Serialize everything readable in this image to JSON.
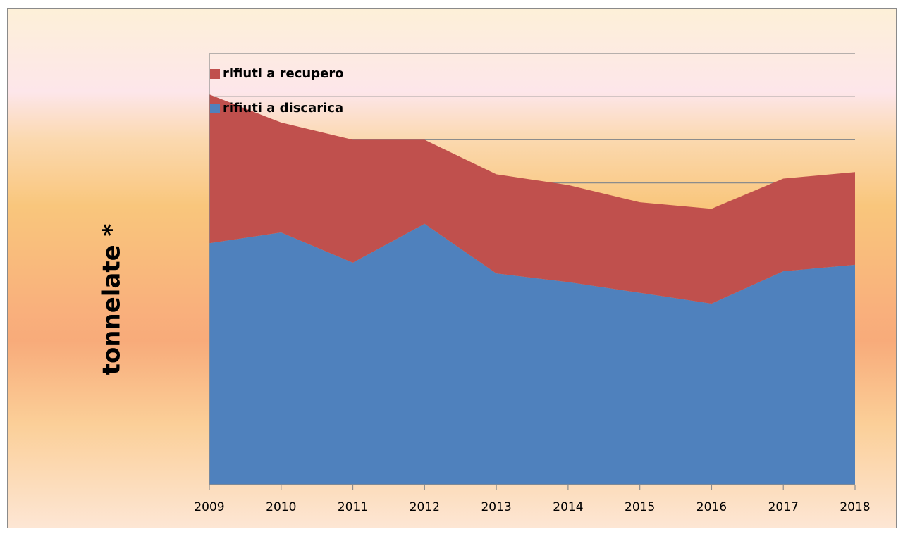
{
  "chart_data": {
    "type": "stacked_area",
    "y_label": "tonnelate *",
    "categories": [
      "2009",
      "2010",
      "2011",
      "2012",
      "2013",
      "2014",
      "2015",
      "2016",
      "2017",
      "2018"
    ],
    "series": [
      {
        "name": "rifiuti a discarica",
        "color": "#4f81bd",
        "values": [
          5.6,
          5.85,
          5.15,
          6.05,
          4.9,
          4.7,
          4.45,
          4.2,
          4.95,
          5.1
        ]
      },
      {
        "name": "rifiuti a recupero",
        "color": "#c0504d",
        "values": [
          3.45,
          2.55,
          2.85,
          1.95,
          2.3,
          2.25,
          2.1,
          2.2,
          2.15,
          2.15
        ]
      }
    ],
    "ylim": [
      0,
      10
    ],
    "yticks": [
      0,
      1,
      2,
      3,
      4,
      5,
      6,
      7,
      8,
      9,
      10
    ],
    "grid": true,
    "legend": "top-left"
  }
}
